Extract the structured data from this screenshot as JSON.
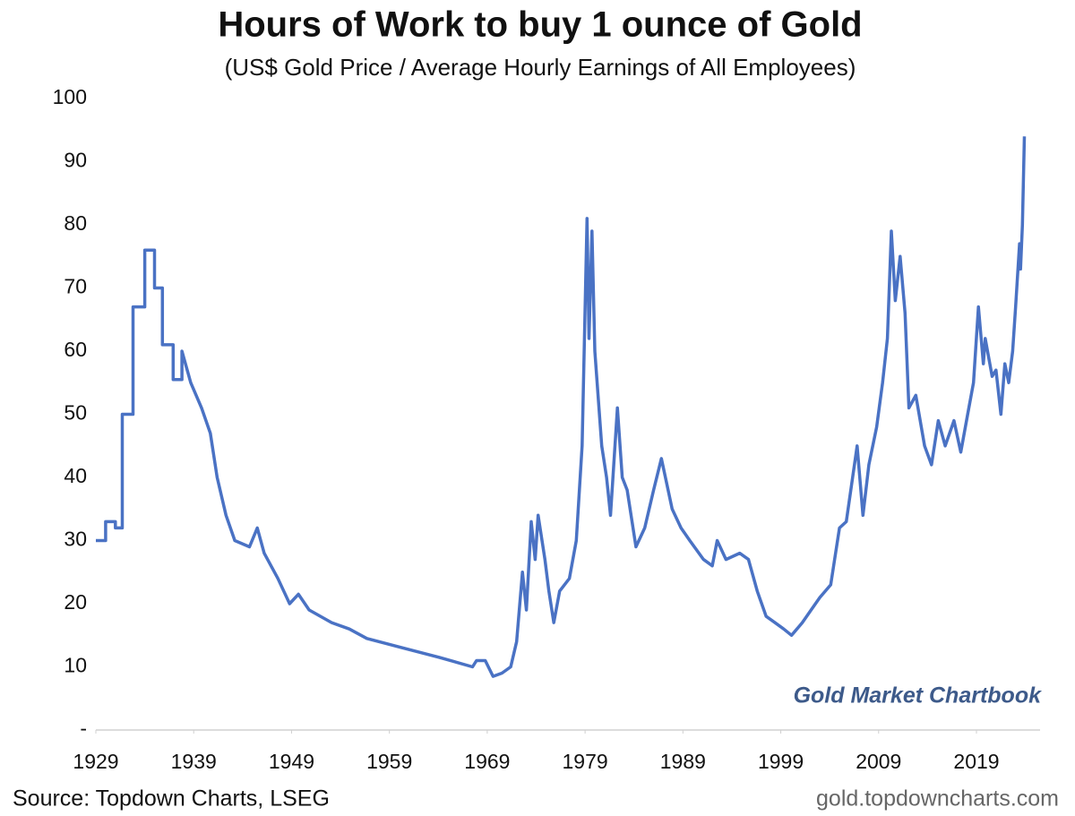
{
  "chart_data": {
    "type": "line",
    "title": "Hours of Work to buy 1 ounce of Gold",
    "subtitle": "(US$ Gold Price / Average Hourly Earnings of All Employees)",
    "annotation": "Gold Market Chartbook",
    "source": "Source: Topdown Charts, LSEG",
    "website": "gold.topdowncharts.com",
    "color": "#4a72c4",
    "x": [
      1929,
      1930,
      1930,
      1931,
      1931,
      1931.7,
      1931.7,
      1932.8,
      1932.8,
      1934,
      1934,
      1935,
      1935,
      1935.8,
      1935.8,
      1936.9,
      1936.9,
      1937.8,
      1937.8,
      1938.7,
      1939.8,
      1940.7,
      1941.4,
      1942.3,
      1943.2,
      1944.7,
      1945.5,
      1946.2,
      1947.6,
      1948.8,
      1949.7,
      1950.8,
      1953.1,
      1954.9,
      1956.7,
      1960.4,
      1964.1,
      1967.5,
      1967.9,
      1968.8,
      1969.6,
      1970.5,
      1971.4,
      1972,
      1972.6,
      1973,
      1973.5,
      1973.9,
      1974.2,
      1974.9,
      1975.3,
      1975.8,
      1976.4,
      1977.4,
      1978.1,
      1978.7,
      1979.2,
      1979.4,
      1979.7,
      1980,
      1980.7,
      1981.2,
      1981.6,
      1982.3,
      1982.8,
      1983.3,
      1984.2,
      1985.1,
      1986,
      1986.8,
      1987.9,
      1988.8,
      1989.7,
      1991.1,
      1992,
      1992.5,
      1993.4,
      1994.8,
      1995.7,
      1996.6,
      1997.5,
      1998.4,
      1999.3,
      2000.1,
      2001.2,
      2002.1,
      2003,
      2004.1,
      2005,
      2005.7,
      2006.8,
      2007.4,
      2008,
      2008.8,
      2009.4,
      2009.9,
      2010.3,
      2010.7,
      2011.2,
      2011.7,
      2012.1,
      2012.8,
      2013.7,
      2014.4,
      2015.1,
      2015.8,
      2016.7,
      2017.4,
      2018.1,
      2018.7,
      2019.2,
      2019.7,
      2019.9,
      2020.6,
      2021,
      2021.5,
      2021.9,
      2022.3,
      2022.7,
      2023,
      2023.4,
      2023.5,
      2023.7,
      2023.9
    ],
    "values": [
      30,
      30,
      33,
      33,
      32,
      32,
      50,
      50,
      67,
      67,
      76,
      76,
      70,
      70,
      61,
      61,
      55.5,
      55.5,
      60,
      55,
      51,
      47,
      40,
      34,
      30,
      29,
      32,
      28,
      24,
      20,
      21.5,
      19,
      17,
      16,
      14.5,
      13,
      11.5,
      10,
      11,
      11,
      8.5,
      9,
      10,
      14,
      25,
      19,
      33,
      27,
      34,
      27,
      22,
      17,
      22,
      24,
      30,
      45,
      81,
      62,
      79,
      60,
      45,
      40,
      34,
      51,
      40,
      38,
      29,
      32,
      38,
      43,
      35,
      32,
      30,
      27,
      26,
      30,
      27,
      28,
      27,
      22,
      18,
      17,
      16,
      15,
      17,
      19,
      21,
      23,
      32,
      33,
      45,
      34,
      42,
      48,
      55,
      62,
      79,
      68,
      75,
      66,
      51,
      53,
      45,
      42,
      49,
      45,
      49,
      44,
      50,
      55,
      67,
      58,
      62,
      56,
      57,
      50,
      58,
      55,
      60,
      67,
      77,
      73,
      80,
      94
    ],
    "xlim": [
      1929,
      2025.5
    ],
    "xticks": [
      1929,
      1939,
      1949,
      1959,
      1969,
      1979,
      1989,
      1999,
      2009,
      2019
    ],
    "ylim": [
      0,
      100
    ],
    "yticks": [
      {
        "value": 0,
        "label": "-"
      },
      10,
      20,
      30,
      40,
      50,
      60,
      70,
      80,
      90,
      100
    ]
  }
}
